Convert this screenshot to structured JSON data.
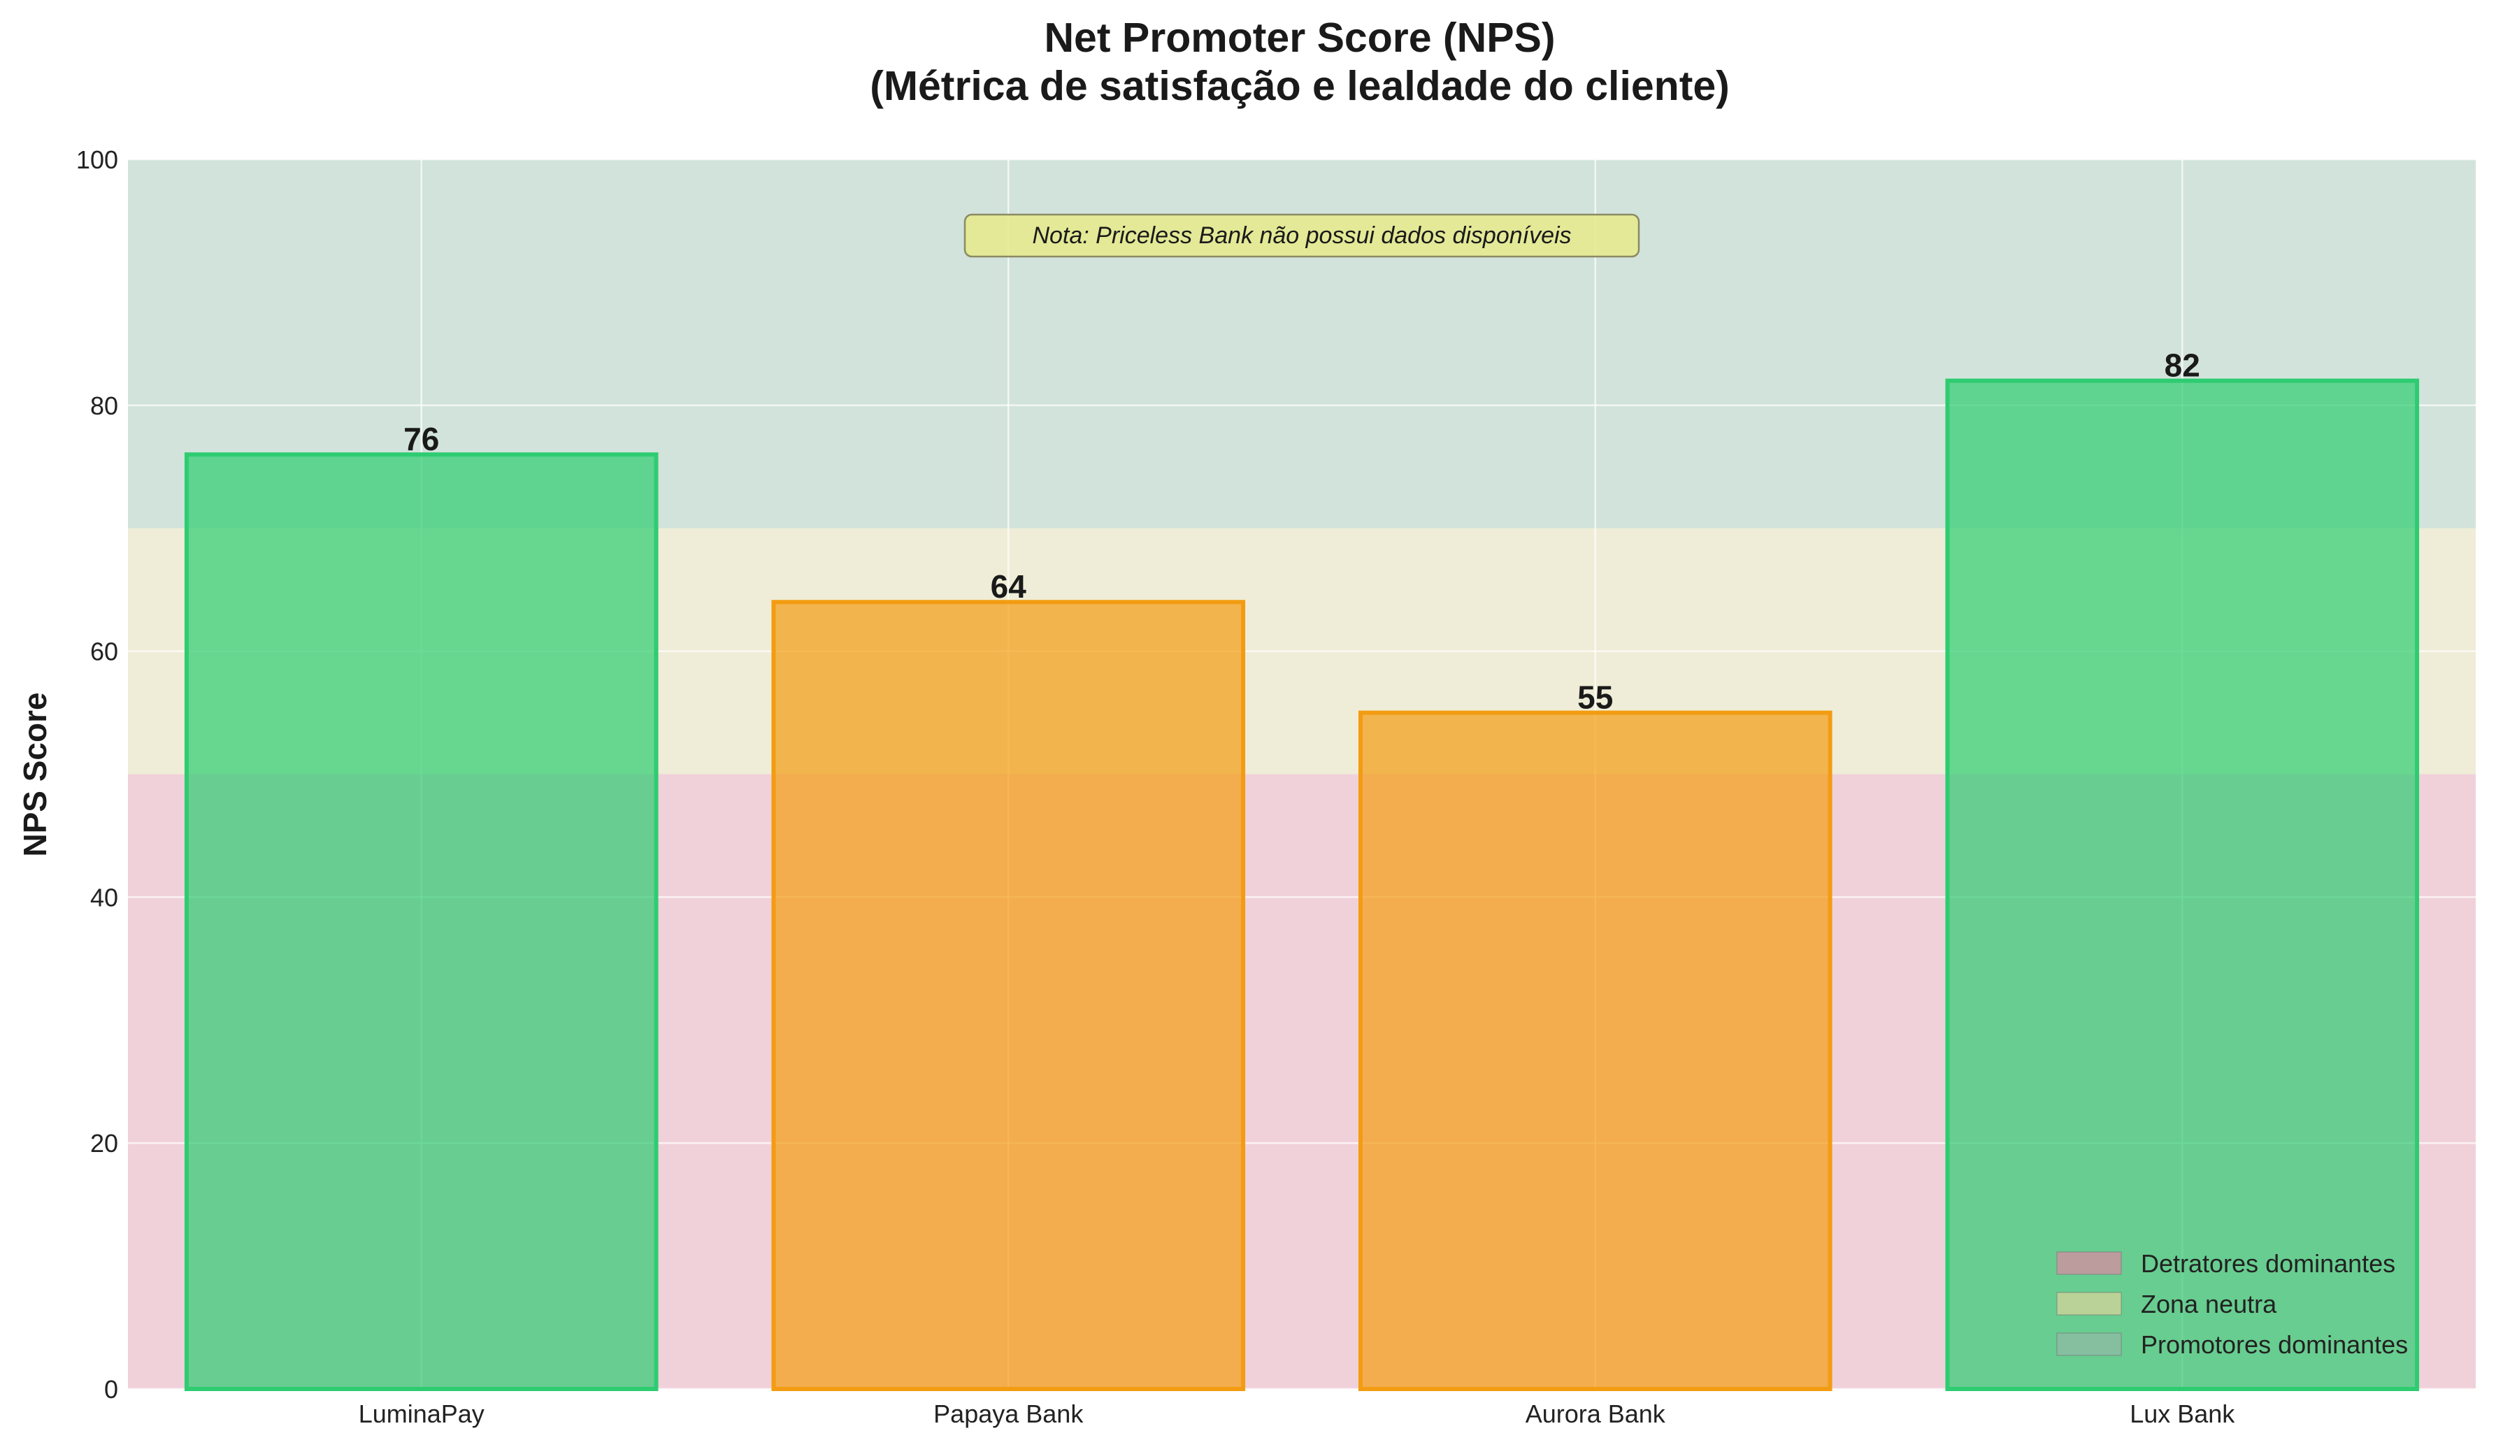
{
  "chart_data": {
    "type": "bar",
    "title_line1": "Net Promoter Score (NPS)",
    "title_line2": "(Métrica de satisfação e lealdade do cliente)",
    "xlabel": "",
    "ylabel": "NPS Score",
    "categories": [
      "LuminaPay",
      "Papaya Bank",
      "Aurora Bank",
      "Lux Bank"
    ],
    "values": [
      76,
      64,
      55,
      82
    ],
    "value_labels": [
      "76",
      "64",
      "55",
      "82"
    ],
    "bar_colors": [
      "#2ecc71",
      "#f39c12",
      "#f39c12",
      "#2ecc71"
    ],
    "ylim": [
      0,
      100
    ],
    "yticks": [
      0,
      20,
      40,
      60,
      80,
      100
    ],
    "ytick_labels": [
      "0",
      "20",
      "40",
      "60",
      "80",
      "100"
    ],
    "grid": true,
    "zones": [
      {
        "name": "Detratores dominantes",
        "from": 0,
        "to": 50,
        "color": "#d98ba3"
      },
      {
        "name": "Zona neutra",
        "from": 50,
        "to": 70,
        "color": "#d6d39a"
      },
      {
        "name": "Promotores dominantes",
        "from": 70,
        "to": 100,
        "color": "#8fb9a6"
      }
    ],
    "legend_placement": "bottom-right",
    "legend_entries": [
      "Detratores dominantes",
      "Zona neutra",
      "Promotores dominantes"
    ],
    "note": "Nota: Priceless Bank não possui dados disponíveis"
  }
}
